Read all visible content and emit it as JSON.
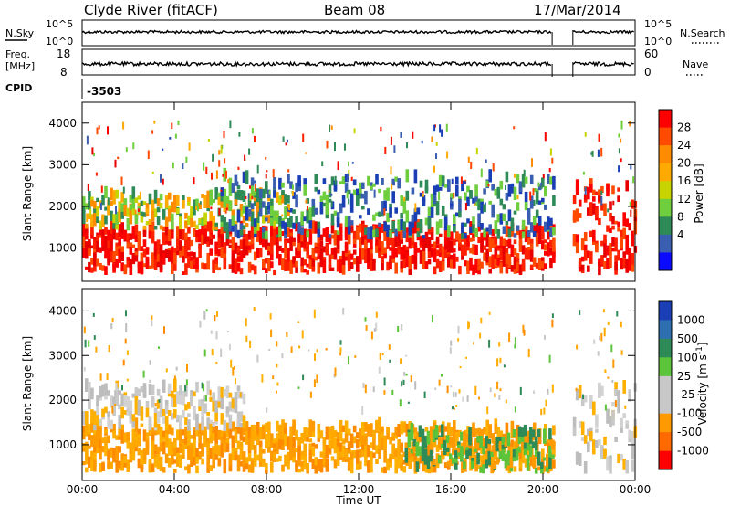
{
  "header": {
    "site": "Clyde River (fitACF)",
    "beam": "Beam 08",
    "date": "17/Mar/2014"
  },
  "strips": {
    "nsky_label": "N.Sky",
    "nsearch_label": "N.Search",
    "freq_label_1": "Freq.",
    "freq_label_2": "[MHz]",
    "nave_label": "Nave",
    "cpid_label": "CPID",
    "cpid_value": "-3503",
    "left_ticks_top": [
      "10^5",
      "10^0"
    ],
    "right_ticks_top": [
      "10^5",
      "10^0"
    ],
    "left_ticks_freq": [
      "18",
      "8"
    ],
    "right_ticks_nave": [
      "60",
      "0"
    ]
  },
  "chart_data": [
    {
      "type": "heatmap",
      "title": "",
      "panel": "power",
      "xlabel": "",
      "ylabel": "Slant Range [km]",
      "ylim": [
        200,
        4500
      ],
      "yticks": [
        "1000",
        "2000",
        "3000",
        "4000"
      ],
      "colorbar_label": "Power [dB]",
      "colorbar_ticks": [
        "28",
        "24",
        "20",
        "16",
        "12",
        "8",
        "4"
      ],
      "colorbar_colors": [
        "#ff0000",
        "#ff4a00",
        "#ff8c00",
        "#ffaa00",
        "#c8d400",
        "#6fce3d",
        "#2e8b57",
        "#3a5fb0",
        "#0a0aff"
      ],
      "gap_ut": [
        20.4,
        21.3
      ],
      "bands": [
        {
          "start_ut": 0.0,
          "end_ut": 20.4,
          "range_low": 350,
          "range_high": 1400,
          "level": "high"
        },
        {
          "start_ut": 0.0,
          "end_ut": 9.0,
          "range_low": 1400,
          "range_high": 2200,
          "level": "mid"
        },
        {
          "start_ut": 6.0,
          "end_ut": 20.4,
          "range_low": 1200,
          "range_high": 2600,
          "level": "low"
        },
        {
          "start_ut": 21.3,
          "end_ut": 24.0,
          "range_low": 350,
          "range_high": 2400,
          "level": "high"
        }
      ]
    },
    {
      "type": "heatmap",
      "title": "",
      "panel": "velocity",
      "xlabel": "Time UT",
      "ylabel": "Slant Range [km]",
      "ylim": [
        200,
        4500
      ],
      "yticks": [
        "1000",
        "2000",
        "3000",
        "4000"
      ],
      "colorbar_label": "Velocity [m s^-1]",
      "colorbar_ticks": [
        "1000",
        "500",
        "100",
        "25",
        "-25",
        "-100",
        "-500",
        "-1000"
      ],
      "colorbar_colors": [
        "#1a3fb5",
        "#2e6fb0",
        "#2e8b57",
        "#5cc43a",
        "#c8c8c8",
        "#c8c8c8",
        "#ff9a00",
        "#ff6a00",
        "#ff0000"
      ],
      "xticks": [
        "00:00",
        "04:00",
        "08:00",
        "12:00",
        "16:00",
        "20:00",
        "00:00"
      ],
      "xlim_ut": [
        0,
        24
      ],
      "gap_ut": [
        20.4,
        21.3
      ],
      "bands": [
        {
          "start_ut": 0.0,
          "end_ut": 20.4,
          "range_low": 350,
          "range_high": 1300,
          "level": "away"
        },
        {
          "start_ut": 0.0,
          "end_ut": 7.0,
          "range_low": 1300,
          "range_high": 2200,
          "level": "zero"
        },
        {
          "start_ut": 14.0,
          "end_ut": 20.4,
          "range_low": 350,
          "range_high": 1200,
          "level": "toward"
        },
        {
          "start_ut": 21.3,
          "end_ut": 24.0,
          "range_low": 350,
          "range_high": 2200,
          "level": "zero"
        }
      ]
    }
  ]
}
